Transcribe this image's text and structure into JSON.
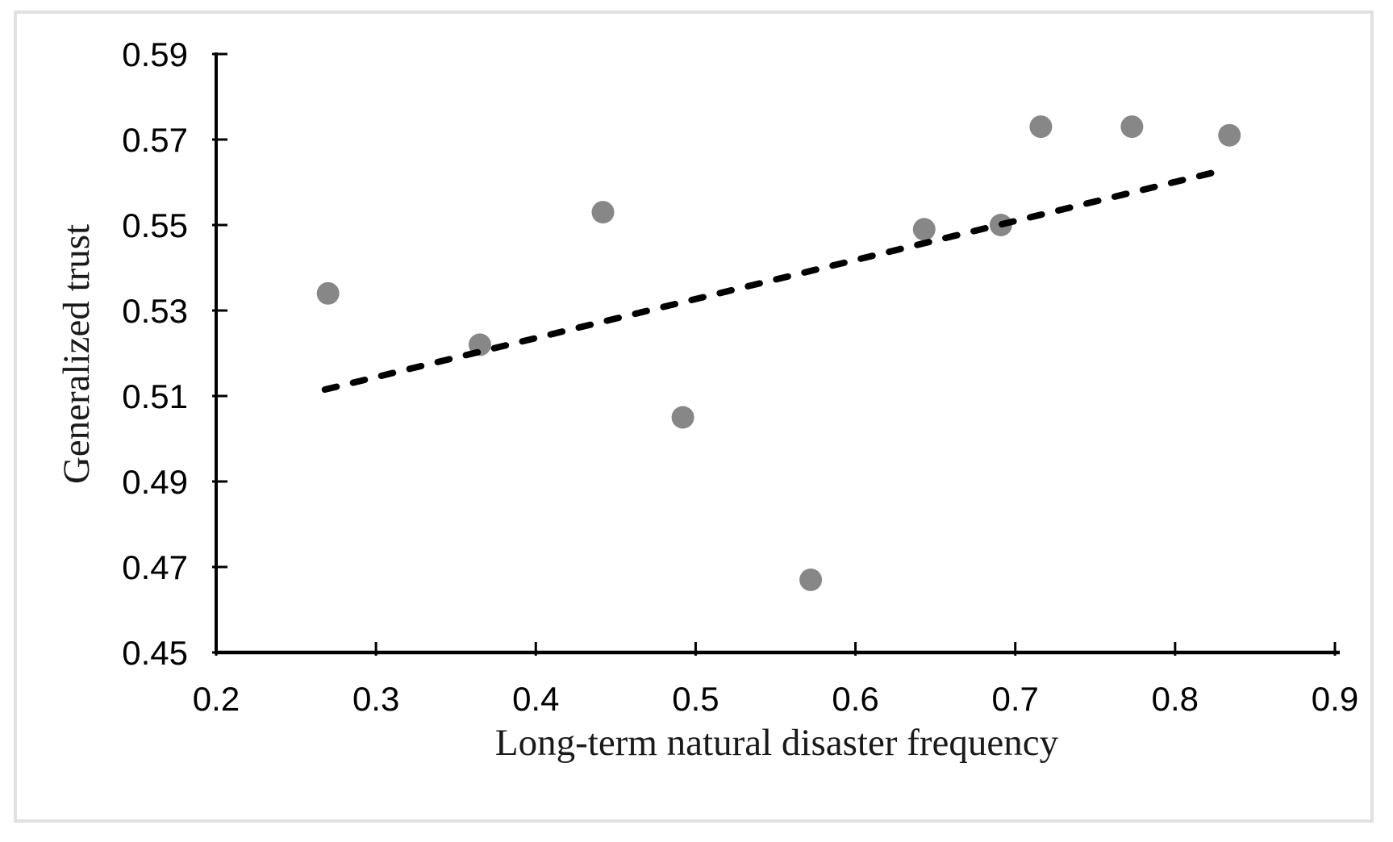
{
  "chart_data": {
    "type": "scatter",
    "title": "",
    "xlabel": "Long-term natural disaster frequency",
    "ylabel": "Generalized trust",
    "xlim": [
      0.2,
      0.9
    ],
    "ylim": [
      0.45,
      0.59
    ],
    "xticks": [
      "0.2",
      "0.3",
      "0.4",
      "0.5",
      "0.6",
      "0.7",
      "0.8",
      "0.9"
    ],
    "yticks": [
      "0.45",
      "0.47",
      "0.49",
      "0.51",
      "0.53",
      "0.55",
      "0.57",
      "0.59"
    ],
    "grid": false,
    "legend": false,
    "points": [
      [
        0.27,
        0.534
      ],
      [
        0.365,
        0.522
      ],
      [
        0.442,
        0.553
      ],
      [
        0.492,
        0.505
      ],
      [
        0.572,
        0.467
      ],
      [
        0.643,
        0.549
      ],
      [
        0.691,
        0.55
      ],
      [
        0.716,
        0.573
      ],
      [
        0.773,
        0.573
      ],
      [
        0.834,
        0.571
      ]
    ],
    "trendline": {
      "style": "dashed",
      "x1": 0.268,
      "y1": 0.5115,
      "x2": 0.832,
      "y2": 0.563
    },
    "colors": {
      "marker": "#878787",
      "axis": "#000000",
      "tick_label": "#000000",
      "trendline": "#000000",
      "frame_border": "#E1E1E1",
      "background": "#FFFFFF"
    }
  }
}
